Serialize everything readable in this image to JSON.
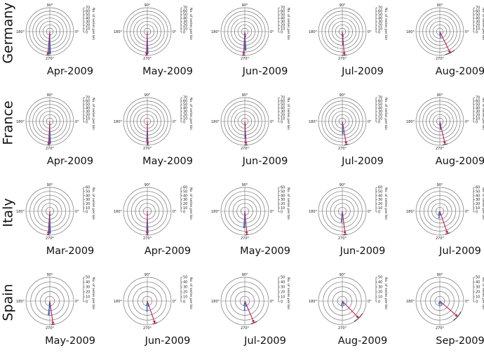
{
  "chart_data": {
    "type": "rose",
    "angle_labels": [
      "90°",
      "180°",
      "0°",
      "270°"
    ],
    "radial_axis_label": "No. of series per bin",
    "colors": {
      "bars": "#1f5fb4",
      "mean_arrow": "#c8175a",
      "spread_arc": "#444444",
      "grid": "#777777"
    },
    "rows": [
      {
        "country": "Germany",
        "radial_ticks": [
          0,
          10,
          20,
          30,
          40,
          50,
          60,
          70
        ],
        "rmax": 70,
        "panels": [
          {
            "month": "Apr-2009",
            "bars": [
              {
                "angle": 270,
                "value": 66
              },
              {
                "angle": 275,
                "value": 14
              },
              {
                "angle": 265,
                "value": 6
              }
            ],
            "arrow_angle": 265,
            "arrow_length": 1.0,
            "arc_span": 4
          },
          {
            "month": "May-2009",
            "bars": [
              {
                "angle": 270,
                "value": 66
              },
              {
                "angle": 275,
                "value": 8
              },
              {
                "angle": 265,
                "value": 5
              }
            ],
            "arrow_angle": 268,
            "arrow_length": 1.0,
            "arc_span": 3
          },
          {
            "month": "Jun-2009",
            "bars": [
              {
                "angle": 272,
                "value": 55
              },
              {
                "angle": 280,
                "value": 16
              },
              {
                "angle": 265,
                "value": 8
              }
            ],
            "arrow_angle": 267,
            "arrow_length": 0.98,
            "arc_span": 4
          },
          {
            "month": "Jul-2009",
            "bars": [
              {
                "angle": 273,
                "value": 40
              },
              {
                "angle": 282,
                "value": 15
              },
              {
                "angle": 265,
                "value": 12
              }
            ],
            "arrow_angle": 275,
            "arrow_length": 1.0,
            "arc_span": 6
          },
          {
            "month": "Aug-2009",
            "bars": [
              {
                "angle": 280,
                "value": 20
              },
              {
                "angle": 293,
                "value": 8
              },
              {
                "angle": 268,
                "value": 12
              },
              {
                "angle": 300,
                "value": 5
              }
            ],
            "arrow_angle": 296,
            "arrow_length": 1.02,
            "arc_span": 12
          }
        ]
      },
      {
        "country": "France",
        "radial_ticks": [
          0,
          10,
          20,
          30,
          40,
          50,
          60,
          70
        ],
        "rmax": 70,
        "panels": [
          {
            "month": "Apr-2009",
            "bars": [
              {
                "angle": 270,
                "value": 66
              },
              {
                "angle": 276,
                "value": 10
              },
              {
                "angle": 264,
                "value": 5
              }
            ],
            "arrow_angle": 267,
            "arrow_length": 1.0,
            "arc_span": 3
          },
          {
            "month": "May-2009",
            "bars": [
              {
                "angle": 270,
                "value": 60
              },
              {
                "angle": 275,
                "value": 12
              },
              {
                "angle": 265,
                "value": 6
              }
            ],
            "arrow_angle": 271,
            "arrow_length": 1.0,
            "arc_span": 3
          },
          {
            "month": "Jun-2009",
            "bars": [
              {
                "angle": 272,
                "value": 50
              },
              {
                "angle": 280,
                "value": 14
              },
              {
                "angle": 265,
                "value": 8
              }
            ],
            "arrow_angle": 273,
            "arrow_length": 0.98,
            "arc_span": 4
          },
          {
            "month": "Jul-2009",
            "bars": [
              {
                "angle": 272,
                "value": 38
              },
              {
                "angle": 282,
                "value": 14
              },
              {
                "angle": 265,
                "value": 10
              }
            ],
            "arrow_angle": 280,
            "arrow_length": 0.98,
            "arc_span": 5
          },
          {
            "month": "Aug-2009",
            "bars": [
              {
                "angle": 275,
                "value": 25
              },
              {
                "angle": 288,
                "value": 10
              },
              {
                "angle": 266,
                "value": 12
              }
            ],
            "arrow_angle": 283,
            "arrow_length": 0.98,
            "arc_span": 6
          }
        ]
      },
      {
        "country": "Italy",
        "radial_ticks": [
          0,
          10,
          20,
          30,
          40,
          50,
          60
        ],
        "rmax": 60,
        "panels": [
          {
            "month": "Mar-2009",
            "bars": [
              {
                "angle": 270,
                "value": 56
              },
              {
                "angle": 275,
                "value": 12
              },
              {
                "angle": 265,
                "value": 6
              }
            ],
            "arrow_angle": 266,
            "arrow_length": 1.0,
            "arc_span": 3
          },
          {
            "month": "Apr-2009",
            "bars": [
              {
                "angle": 270,
                "value": 55
              },
              {
                "angle": 275,
                "value": 10
              },
              {
                "angle": 265,
                "value": 6
              }
            ],
            "arrow_angle": 270,
            "arrow_length": 1.0,
            "arc_span": 3
          },
          {
            "month": "May-2009",
            "bars": [
              {
                "angle": 268,
                "value": 42
              },
              {
                "angle": 278,
                "value": 12
              },
              {
                "angle": 262,
                "value": 8
              }
            ],
            "arrow_angle": 275,
            "arrow_length": 0.98,
            "arc_span": 4
          },
          {
            "month": "Jun-2009",
            "bars": [
              {
                "angle": 265,
                "value": 28
              },
              {
                "angle": 275,
                "value": 14
              },
              {
                "angle": 258,
                "value": 8
              }
            ],
            "arrow_angle": 277,
            "arrow_length": 0.98,
            "arc_span": 5
          },
          {
            "month": "Jul-2009",
            "bars": [
              {
                "angle": 262,
                "value": 18
              },
              {
                "angle": 250,
                "value": 12
              },
              {
                "angle": 280,
                "value": 10
              },
              {
                "angle": 235,
                "value": 6
              }
            ],
            "arrow_angle": 289,
            "arrow_length": 1.0,
            "arc_span": 6
          }
        ]
      },
      {
        "country": "Spain",
        "radial_ticks": [
          0,
          10,
          20,
          30,
          40,
          50
        ],
        "rmax": 50,
        "panels": [
          {
            "month": "May-2009",
            "bars": [
              {
                "angle": 265,
                "value": 30
              },
              {
                "angle": 275,
                "value": 14
              },
              {
                "angle": 258,
                "value": 8
              }
            ],
            "arrow_angle": 278,
            "arrow_length": 1.0,
            "arc_span": 5
          },
          {
            "month": "Jun-2009",
            "bars": [
              {
                "angle": 268,
                "value": 22
              },
              {
                "angle": 282,
                "value": 12
              },
              {
                "angle": 258,
                "value": 10
              },
              {
                "angle": 290,
                "value": 6
              }
            ],
            "arrow_angle": 289,
            "arrow_length": 1.0,
            "arc_span": 6
          },
          {
            "month": "Jul-2009",
            "bars": [
              {
                "angle": 268,
                "value": 20
              },
              {
                "angle": 285,
                "value": 12
              },
              {
                "angle": 258,
                "value": 10
              },
              {
                "angle": 300,
                "value": 6
              }
            ],
            "arrow_angle": 293,
            "arrow_length": 1.0,
            "arc_span": 8
          },
          {
            "month": "Aug-2009",
            "bars": [
              {
                "angle": 270,
                "value": 14
              },
              {
                "angle": 290,
                "value": 10
              },
              {
                "angle": 255,
                "value": 10
              },
              {
                "angle": 310,
                "value": 8
              },
              {
                "angle": 300,
                "value": 6
              }
            ],
            "arrow_angle": 314,
            "arrow_length": 1.0,
            "arc_span": 14
          },
          {
            "month": "Sep-2009",
            "bars": [
              {
                "angle": 270,
                "value": 12
              },
              {
                "angle": 295,
                "value": 10
              },
              {
                "angle": 255,
                "value": 8
              },
              {
                "angle": 310,
                "value": 8
              },
              {
                "angle": 240,
                "value": 6
              }
            ],
            "arrow_angle": 319,
            "arrow_length": 1.0,
            "arc_span": 14
          }
        ]
      }
    ]
  }
}
